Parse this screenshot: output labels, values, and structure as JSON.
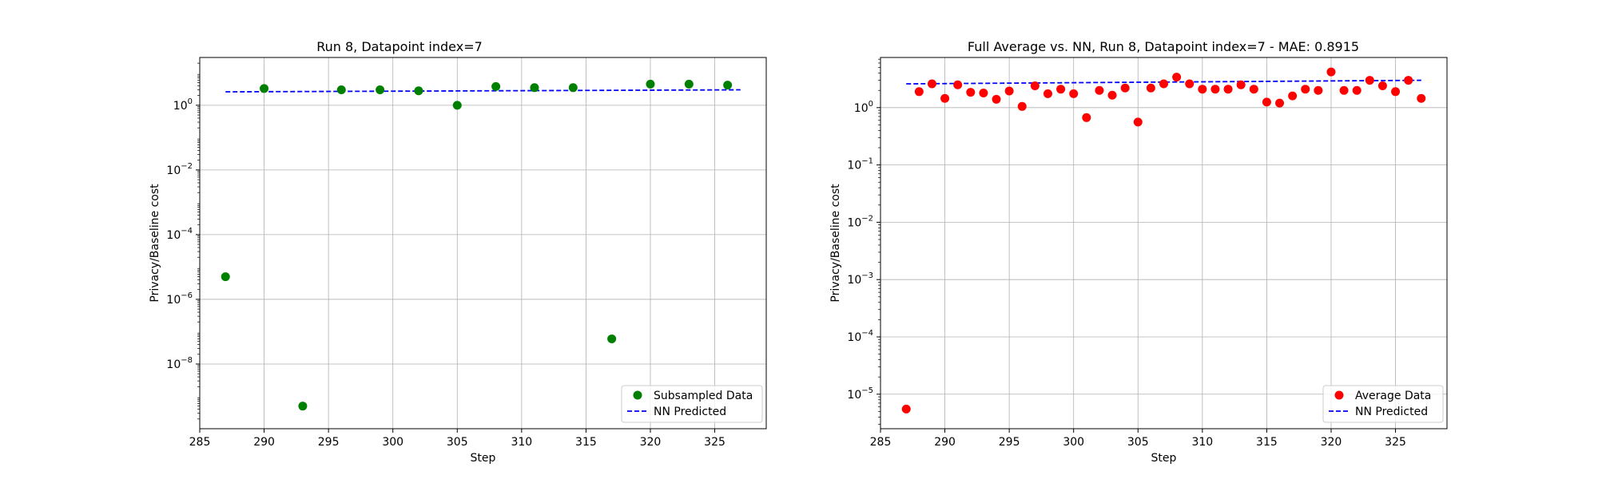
{
  "chart_data": [
    {
      "type": "scatter",
      "title": "Run 8, Datapoint index=7",
      "xlabel": "Step",
      "ylabel": "Privacy/Baseline cost",
      "xlim": [
        285,
        329
      ],
      "ylim": [
        1e-10,
        30
      ],
      "yscale": "log",
      "grid": true,
      "legend_position": "lower-right",
      "xticks": [
        285,
        290,
        295,
        300,
        305,
        310,
        315,
        320,
        325
      ],
      "xtick_labels": [
        "285",
        "290",
        "295",
        "300",
        "305",
        "310",
        "315",
        "320",
        "325"
      ],
      "yticks": [
        1e-08,
        1e-06,
        0.0001,
        0.01,
        1
      ],
      "ytick_labels": [
        {
          "base": "10",
          "exp": "−8"
        },
        {
          "base": "10",
          "exp": "−6"
        },
        {
          "base": "10",
          "exp": "−4"
        },
        {
          "base": "10",
          "exp": "−2"
        },
        {
          "base": "10",
          "exp": "0"
        }
      ],
      "series": [
        {
          "name": "Subsampled Data",
          "kind": "scatter",
          "color": "#008000",
          "x": [
            287,
            290,
            293,
            296,
            299,
            302,
            305,
            308,
            311,
            314,
            317,
            320,
            323,
            326
          ],
          "y": [
            5e-06,
            3.3,
            5e-10,
            3.0,
            3.0,
            2.8,
            1.0,
            3.8,
            3.5,
            3.5,
            6e-08,
            4.5,
            4.5,
            4.2
          ]
        },
        {
          "name": "NN Predicted",
          "kind": "line",
          "dashed": true,
          "color": "#0000ff",
          "x": [
            287,
            327
          ],
          "y": [
            2.6,
            3.0
          ]
        }
      ]
    },
    {
      "type": "scatter",
      "title": "Full Average vs. NN, Run 8, Datapoint index=7 - MAE: 0.8915",
      "xlabel": "Step",
      "ylabel": "Privacy/Baseline cost",
      "xlim": [
        285,
        329
      ],
      "ylim": [
        2.5e-06,
        7.5
      ],
      "yscale": "log",
      "grid": true,
      "legend_position": "lower-right",
      "xticks": [
        285,
        290,
        295,
        300,
        305,
        310,
        315,
        320,
        325
      ],
      "xtick_labels": [
        "285",
        "290",
        "295",
        "300",
        "305",
        "310",
        "315",
        "320",
        "325"
      ],
      "yticks": [
        1e-05,
        0.0001,
        0.001,
        0.01,
        0.1,
        1
      ],
      "ytick_labels": [
        {
          "base": "10",
          "exp": "−5"
        },
        {
          "base": "10",
          "exp": "−4"
        },
        {
          "base": "10",
          "exp": "−3"
        },
        {
          "base": "10",
          "exp": "−2"
        },
        {
          "base": "10",
          "exp": "−1"
        },
        {
          "base": "10",
          "exp": "0"
        }
      ],
      "series": [
        {
          "name": "Average Data",
          "kind": "scatter",
          "color": "#ff0000",
          "x": [
            287,
            288,
            289,
            290,
            291,
            292,
            293,
            294,
            295,
            296,
            297,
            298,
            299,
            300,
            301,
            302,
            303,
            304,
            305,
            306,
            307,
            308,
            309,
            310,
            311,
            312,
            313,
            314,
            315,
            316,
            317,
            318,
            319,
            320,
            321,
            322,
            323,
            324,
            325,
            326,
            327
          ],
          "y": [
            5.5e-06,
            1.9,
            2.6,
            1.45,
            2.5,
            1.85,
            1.8,
            1.4,
            1.95,
            1.05,
            2.4,
            1.75,
            2.1,
            1.75,
            0.67,
            2.0,
            1.65,
            2.2,
            0.56,
            2.2,
            2.6,
            3.4,
            2.6,
            2.1,
            2.1,
            2.1,
            2.5,
            2.1,
            1.25,
            1.2,
            1.6,
            2.1,
            2.0,
            4.2,
            2.0,
            2.0,
            3.0,
            2.4,
            1.9,
            3.0,
            1.45
          ]
        },
        {
          "name": "NN Predicted",
          "kind": "line",
          "dashed": true,
          "color": "#0000ff",
          "x": [
            287,
            327
          ],
          "y": [
            2.6,
            3.0
          ]
        }
      ]
    }
  ]
}
